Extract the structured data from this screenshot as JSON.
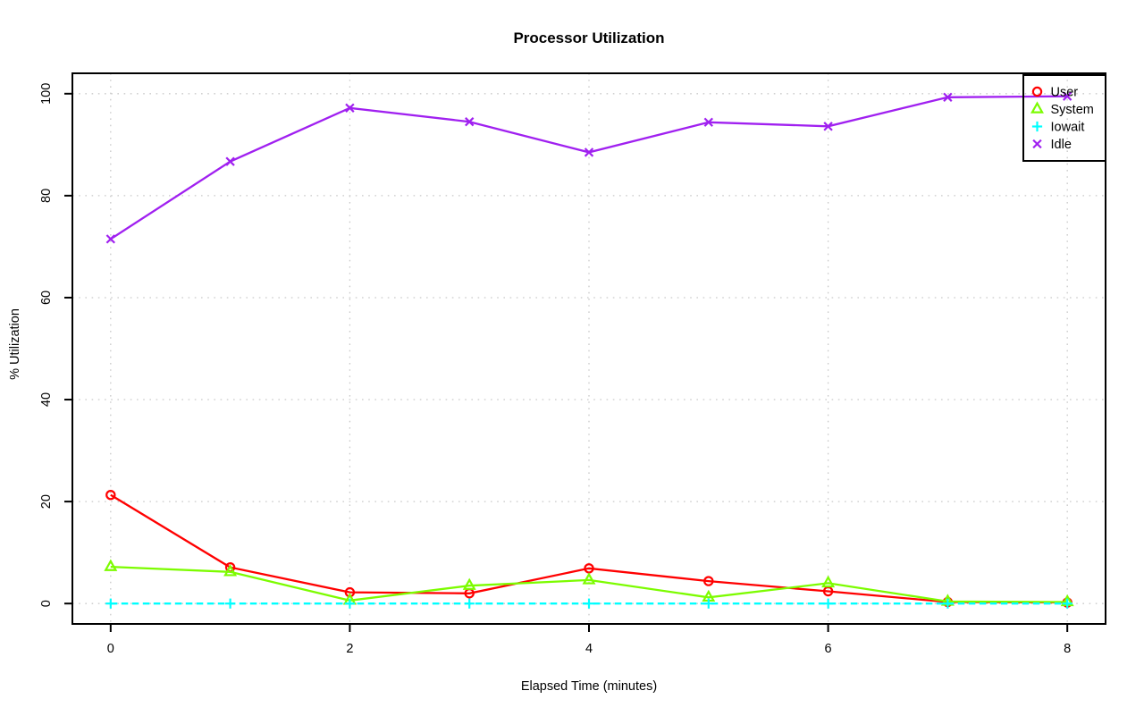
{
  "title": "Processor Utilization",
  "xlabel": "Elapsed Time (minutes)",
  "ylabel": "% Utilization",
  "colors": {
    "background": "#ffffff",
    "axis": "#000000",
    "grid": "#c9c9c9",
    "legend_border": "#000000",
    "text": "#000000"
  },
  "chart_data": {
    "type": "line",
    "title": "Processor Utilization",
    "xlabel": "Elapsed Time (minutes)",
    "ylabel": "% Utilization",
    "x": [
      0,
      1,
      2,
      3,
      4,
      5,
      6,
      7,
      8
    ],
    "xlim": [
      0,
      8
    ],
    "ylim": [
      0,
      100
    ],
    "x_ticks": [
      0,
      2,
      4,
      6,
      8
    ],
    "y_ticks": [
      0,
      20,
      40,
      60,
      80,
      100
    ],
    "grid": "dotted",
    "legend_position": "top-right",
    "legend_entries": [
      "User",
      "System",
      "Iowait",
      "Idle"
    ],
    "series": [
      {
        "name": "User",
        "color": "#ff0000",
        "marker": "circle",
        "line_style": "solid",
        "values": [
          21.3,
          7.1,
          2.2,
          2.0,
          6.9,
          4.4,
          2.4,
          0.3,
          0.2
        ]
      },
      {
        "name": "System",
        "color": "#7cfc00",
        "marker": "triangle",
        "line_style": "solid",
        "values": [
          7.2,
          6.2,
          0.6,
          3.5,
          4.6,
          1.2,
          4.0,
          0.4,
          0.3
        ]
      },
      {
        "name": "Iowait",
        "color": "#00ffff",
        "marker": "plus",
        "line_style": "dashed",
        "values": [
          0,
          0,
          0,
          0,
          0,
          0,
          0,
          0,
          0
        ]
      },
      {
        "name": "Idle",
        "color": "#a020f0",
        "marker": "x",
        "line_style": "solid",
        "values": [
          71.5,
          86.7,
          97.2,
          94.5,
          88.5,
          94.4,
          93.6,
          99.3,
          99.5
        ]
      }
    ]
  }
}
